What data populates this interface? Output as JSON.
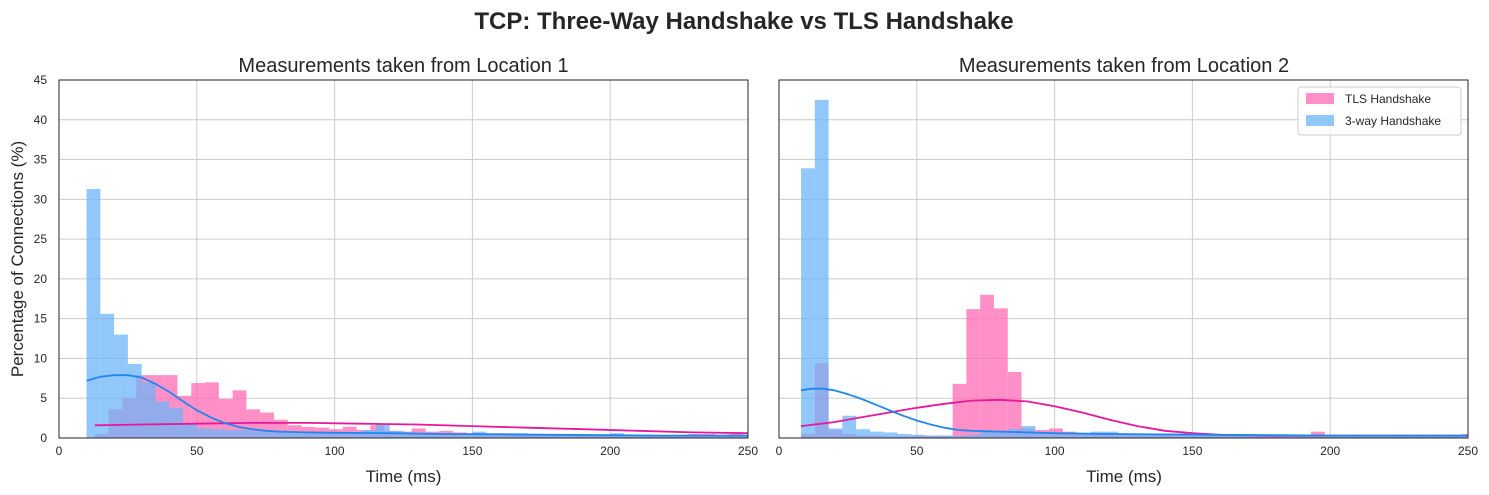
{
  "figure": {
    "title": "TCP: Three-Way Handshake vs TLS Handshake",
    "ylabel": "Percentage of Connections (%)",
    "colors": {
      "tls": "#FF69B4",
      "tls_line": "#E8189A",
      "threeway": "#6CB4F7",
      "threeway_line": "#1E88F0"
    }
  },
  "legend": {
    "entries": [
      {
        "label": "TLS Handshake",
        "series": "tls"
      },
      {
        "label": "3-way Handshake",
        "series": "threeway"
      }
    ]
  },
  "chart_data": [
    {
      "type": "histogram",
      "title": "Measurements taken from Location 1",
      "xlabel": "Time (ms)",
      "ylabel": "Percentage of Connections (%)",
      "xlim": [
        0,
        250
      ],
      "ylim": [
        0,
        45
      ],
      "xticks": [
        0,
        50,
        100,
        150,
        200,
        250
      ],
      "yticks": [
        0,
        5,
        10,
        15,
        20,
        25,
        30,
        35,
        40,
        45
      ],
      "grid": true,
      "legend": false,
      "series": [
        {
          "name": "TLS Handshake",
          "key": "tls",
          "bin_edges": [
            13,
            18,
            23,
            28,
            33,
            38,
            43,
            48,
            53,
            58,
            63,
            68,
            73,
            78,
            83,
            88,
            93,
            98,
            103,
            108,
            113,
            118,
            123,
            128,
            133,
            138,
            143,
            148,
            153,
            158,
            163,
            168,
            173,
            178,
            183,
            188,
            193,
            198,
            203,
            208,
            213,
            218,
            223,
            228,
            233,
            238,
            243,
            248,
            250
          ],
          "values": [
            0.5,
            3.6,
            5.0,
            7.9,
            7.9,
            7.9,
            5.3,
            6.9,
            7.0,
            4.9,
            6.0,
            3.6,
            3.2,
            2.3,
            1.6,
            1.4,
            1.3,
            1.1,
            1.4,
            1.0,
            1.6,
            0.9,
            0.8,
            1.2,
            0.8,
            0.9,
            0.7,
            0.6,
            0.6,
            0.6,
            0.5,
            0.5,
            0.5,
            0.5,
            0.5,
            0.4,
            0.4,
            0.4,
            0.4,
            0.4,
            0.4,
            0.3,
            0.3,
            0.5,
            0.5,
            0.4,
            0.5,
            0.4
          ]
        },
        {
          "name": "3-way Handshake",
          "key": "threeway",
          "bin_edges": [
            10,
            15,
            20,
            25,
            30,
            35,
            40,
            45,
            50,
            55,
            60,
            65,
            70,
            75,
            80,
            85,
            90,
            95,
            100,
            105,
            110,
            115,
            120,
            125,
            130,
            135,
            140,
            145,
            150,
            155,
            160,
            165,
            170,
            175,
            180,
            185,
            190,
            195,
            200,
            205,
            210,
            215,
            220,
            225,
            230,
            235,
            240,
            245,
            250
          ],
          "values": [
            31.3,
            15.6,
            13.0,
            9.3,
            7.0,
            4.6,
            3.8,
            1.9,
            1.2,
            1.1,
            1.0,
            1.0,
            0.9,
            0.9,
            0.8,
            0.7,
            0.7,
            0.7,
            0.7,
            0.7,
            1.0,
            1.7,
            0.9,
            0.7,
            0.6,
            0.6,
            0.5,
            0.5,
            0.8,
            0.6,
            0.6,
            0.6,
            0.5,
            0.5,
            0.5,
            0.4,
            0.4,
            0.4,
            0.6,
            0.4,
            0.4,
            0.3,
            0.3,
            0.3,
            0.3,
            0.3,
            0.3,
            0.3
          ]
        }
      ],
      "kde": [
        {
          "key": "tls",
          "x": [
            13,
            30,
            50,
            70,
            90,
            110,
            130,
            150,
            170,
            190,
            210,
            230,
            250
          ],
          "y": [
            1.6,
            1.7,
            1.8,
            1.9,
            1.9,
            1.8,
            1.7,
            1.5,
            1.3,
            1.1,
            0.9,
            0.7,
            0.6
          ]
        },
        {
          "key": "threeway",
          "x": [
            10,
            15,
            20,
            25,
            30,
            35,
            40,
            45,
            50,
            55,
            60,
            65,
            70,
            75,
            80,
            90,
            100,
            120,
            140,
            160,
            180,
            200,
            220,
            250
          ],
          "y": [
            7.2,
            7.7,
            7.9,
            7.9,
            7.6,
            6.8,
            5.8,
            4.6,
            3.5,
            2.6,
            1.9,
            1.4,
            1.1,
            0.9,
            0.8,
            0.7,
            0.65,
            0.6,
            0.5,
            0.45,
            0.4,
            0.35,
            0.3,
            0.3
          ]
        }
      ]
    },
    {
      "type": "histogram",
      "title": "Measurements taken from Location 2",
      "xlabel": "Time (ms)",
      "ylabel": "",
      "xlim": [
        0,
        250
      ],
      "ylim": [
        0,
        45
      ],
      "xticks": [
        0,
        50,
        100,
        150,
        200,
        250
      ],
      "yticks": [
        0,
        5,
        10,
        15,
        20,
        25,
        30,
        35,
        40,
        45
      ],
      "grid": true,
      "legend": true,
      "legend_position": "top-right",
      "series": [
        {
          "name": "TLS Handshake",
          "key": "tls",
          "bin_edges": [
            8,
            13,
            18,
            23,
            28,
            33,
            38,
            43,
            48,
            53,
            58,
            63,
            68,
            73,
            78,
            83,
            88,
            93,
            98,
            103,
            108,
            113,
            118,
            123,
            128,
            133,
            138,
            143,
            148,
            153,
            158,
            163,
            168,
            173,
            178,
            183,
            188,
            193,
            198,
            203,
            208,
            213,
            218,
            223,
            228,
            233,
            238,
            243,
            248,
            250
          ],
          "values": [
            0.5,
            9.4,
            1.0,
            0.5,
            0.3,
            0.3,
            0.2,
            0.2,
            0.3,
            0.3,
            0.3,
            6.8,
            16.2,
            18.0,
            16.3,
            8.3,
            1.2,
            1.0,
            1.2,
            0.8,
            0.6,
            0.5,
            0.6,
            0.5,
            0.5,
            0.5,
            0.5,
            0.5,
            0.4,
            0.4,
            0.4,
            0.3,
            0.4,
            0.3,
            0.3,
            0.3,
            0.3,
            0.8,
            0.3,
            0.3,
            0.3,
            0.4,
            0.3,
            0.3,
            0.3,
            0.3,
            0.3,
            0.3,
            0.5
          ]
        },
        {
          "name": "3-way Handshake",
          "key": "threeway",
          "bin_edges": [
            8,
            13,
            18,
            23,
            28,
            33,
            38,
            43,
            48,
            53,
            58,
            63,
            68,
            73,
            78,
            83,
            88,
            93,
            98,
            103,
            108,
            113,
            118,
            123,
            128,
            133,
            138,
            143,
            148,
            153,
            158,
            163,
            168,
            173,
            178,
            183,
            188,
            193,
            198,
            203,
            208,
            213,
            218,
            223,
            228,
            233,
            238,
            243,
            248,
            250
          ],
          "values": [
            33.9,
            42.5,
            1.2,
            2.8,
            1.1,
            0.8,
            0.7,
            0.5,
            0.4,
            0.3,
            0.3,
            0.3,
            0.4,
            0.8,
            0.8,
            1.1,
            1.5,
            0.7,
            0.6,
            0.5,
            0.5,
            0.8,
            0.8,
            0.6,
            0.5,
            0.5,
            0.5,
            0.5,
            0.4,
            0.4,
            0.4,
            0.3,
            0.4,
            0.3,
            0.3,
            0.3,
            0.3,
            0.3,
            0.3,
            0.3,
            0.3,
            0.3,
            0.3,
            0.3,
            0.3,
            0.3,
            0.3,
            0.3,
            0.3
          ]
        }
      ],
      "kde": [
        {
          "key": "tls",
          "x": [
            8,
            20,
            30,
            40,
            50,
            60,
            70,
            80,
            90,
            100,
            110,
            120,
            130,
            140,
            150,
            160,
            170,
            180,
            200,
            220,
            250
          ],
          "y": [
            1.5,
            2.0,
            2.6,
            3.2,
            3.8,
            4.3,
            4.7,
            4.8,
            4.6,
            4.0,
            3.2,
            2.3,
            1.5,
            0.9,
            0.6,
            0.4,
            0.35,
            0.3,
            0.3,
            0.3,
            0.3
          ]
        },
        {
          "key": "threeway",
          "x": [
            8,
            12,
            16,
            20,
            25,
            30,
            35,
            40,
            45,
            50,
            55,
            60,
            65,
            70,
            80,
            90,
            100,
            120,
            140,
            160,
            180,
            200,
            220,
            250
          ],
          "y": [
            6.0,
            6.2,
            6.2,
            6.0,
            5.5,
            4.9,
            4.2,
            3.5,
            2.8,
            2.2,
            1.7,
            1.3,
            1.0,
            0.9,
            0.8,
            0.7,
            0.6,
            0.5,
            0.45,
            0.4,
            0.35,
            0.3,
            0.3,
            0.3
          ]
        }
      ]
    }
  ]
}
